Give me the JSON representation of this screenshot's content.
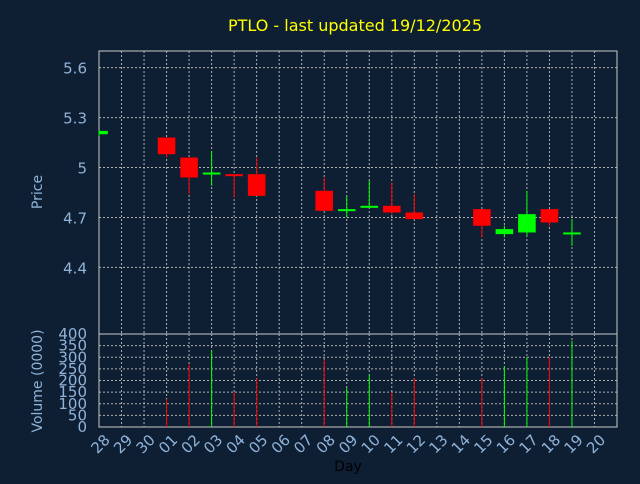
{
  "chart_data": {
    "type": "candlestick",
    "title": "PTLO - last updated 19/12/2025",
    "xlabel": "Day",
    "price_panel": {
      "ylabel": "Price",
      "yticks": [
        "4.4",
        "4.7",
        "5",
        "5.3",
        "5.6"
      ],
      "ylim": [
        4.0,
        5.7
      ]
    },
    "volume_panel": {
      "ylabel": "Volume (0000)",
      "yticks": [
        "0",
        "50",
        "100",
        "150",
        "200",
        "250",
        "300",
        "350",
        "400"
      ],
      "ylim": [
        0,
        400
      ]
    },
    "x_tick_labels": [
      "28",
      "29",
      "30",
      "01",
      "02",
      "03",
      "04",
      "05",
      "06",
      "07",
      "08",
      "09",
      "10",
      "11",
      "12",
      "13",
      "14",
      "15",
      "16",
      "17",
      "18",
      "19",
      "20"
    ],
    "candles": [
      {
        "day": "28",
        "open": 5.2,
        "high": 5.22,
        "low": 5.19,
        "close": 5.22,
        "volume": 0
      },
      {
        "day": "01",
        "open": 5.18,
        "high": 5.18,
        "low": 5.06,
        "close": 5.08,
        "volume": 120
      },
      {
        "day": "02",
        "open": 5.06,
        "high": 5.06,
        "low": 4.84,
        "close": 4.94,
        "volume": 270
      },
      {
        "day": "03",
        "open": 4.96,
        "high": 5.1,
        "low": 4.89,
        "close": 4.97,
        "volume": 330
      },
      {
        "day": "04",
        "open": 4.96,
        "high": 4.96,
        "low": 4.82,
        "close": 4.95,
        "volume": 150
      },
      {
        "day": "05",
        "open": 4.96,
        "high": 5.06,
        "low": 4.83,
        "close": 4.83,
        "volume": 210
      },
      {
        "day": "08",
        "open": 4.86,
        "high": 4.94,
        "low": 4.74,
        "close": 4.74,
        "volume": 290
      },
      {
        "day": "09",
        "open": 4.74,
        "high": 4.83,
        "low": 4.7,
        "close": 4.75,
        "volume": 170
      },
      {
        "day": "10",
        "open": 4.76,
        "high": 4.92,
        "low": 4.76,
        "close": 4.77,
        "volume": 225
      },
      {
        "day": "11",
        "open": 4.77,
        "high": 4.91,
        "low": 4.72,
        "close": 4.73,
        "volume": 150
      },
      {
        "day": "12",
        "open": 4.73,
        "high": 4.84,
        "low": 4.69,
        "close": 4.69,
        "volume": 210
      },
      {
        "day": "15",
        "open": 4.75,
        "high": 4.75,
        "low": 4.58,
        "close": 4.65,
        "volume": 210
      },
      {
        "day": "16",
        "open": 4.6,
        "high": 4.65,
        "low": 4.58,
        "close": 4.63,
        "volume": 260
      },
      {
        "day": "17",
        "open": 4.61,
        "high": 4.86,
        "low": 4.59,
        "close": 4.72,
        "volume": 300
      },
      {
        "day": "18",
        "open": 4.75,
        "high": 4.75,
        "low": 4.65,
        "close": 4.67,
        "volume": 300
      },
      {
        "day": "19",
        "open": 4.61,
        "high": 4.69,
        "low": 4.53,
        "close": 4.61,
        "volume": 370
      }
    ],
    "grid": true,
    "colors": {
      "background": "#0f1f33",
      "title": "#ffff00",
      "axis_text": "#8fb3d9",
      "grid": "#b0b0b0",
      "up": "#00ff00",
      "down": "#ff0000"
    }
  }
}
